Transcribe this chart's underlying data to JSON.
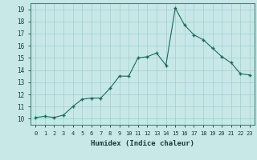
{
  "x": [
    0,
    1,
    2,
    3,
    4,
    5,
    6,
    7,
    8,
    9,
    10,
    11,
    12,
    13,
    14,
    15,
    16,
    17,
    18,
    19,
    20,
    21,
    22,
    23
  ],
  "y": [
    10.1,
    10.2,
    10.1,
    10.3,
    11.0,
    11.6,
    11.7,
    11.7,
    12.5,
    13.5,
    13.5,
    15.0,
    15.1,
    15.4,
    14.4,
    19.1,
    17.7,
    16.9,
    16.5,
    15.8,
    15.1,
    14.6,
    13.7,
    13.6
  ],
  "line_color": "#1a6b5a",
  "bg_color": "#c8e8e8",
  "grid_color": "#a0cece",
  "xlabel": "Humidex (Indice chaleur)",
  "xlim": [
    -0.5,
    23.5
  ],
  "ylim": [
    9.5,
    19.5
  ],
  "yticks": [
    10,
    11,
    12,
    13,
    14,
    15,
    16,
    17,
    18,
    19
  ],
  "xticks": [
    0,
    1,
    2,
    3,
    4,
    5,
    6,
    7,
    8,
    9,
    10,
    11,
    12,
    13,
    14,
    15,
    16,
    17,
    18,
    19,
    20,
    21,
    22,
    23
  ],
  "xtick_labels": [
    "0",
    "1",
    "2",
    "3",
    "4",
    "5",
    "6",
    "7",
    "8",
    "9",
    "10",
    "11",
    "12",
    "13",
    "14",
    "15",
    "16",
    "17",
    "18",
    "19",
    "20",
    "21",
    "22",
    "23"
  ]
}
